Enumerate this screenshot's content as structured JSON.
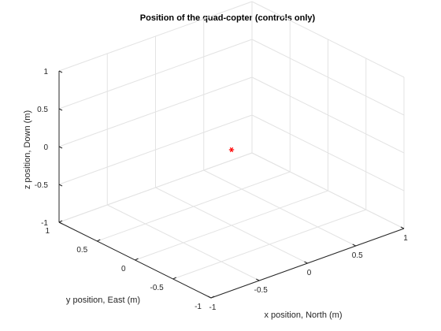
{
  "chart_data": {
    "type": "scatter",
    "title": "Position of the quad-copter (controls only)",
    "xlabel": "x position, North (m)",
    "ylabel": "y position, East (m)",
    "zlabel": "z position, Down (m)",
    "xlim": [
      -1,
      1
    ],
    "ylim": [
      -1,
      1
    ],
    "zlim": [
      -1,
      1
    ],
    "xticks": [
      "-1",
      "-0.5",
      "0",
      "0.5",
      "1"
    ],
    "yticks": [
      "-1",
      "-0.5",
      "0",
      "0.5",
      "1"
    ],
    "zticks": [
      "-1",
      "-0.5",
      "0",
      "0.5",
      "1"
    ],
    "grid": true,
    "view": "3d",
    "series": [
      {
        "marker": "asterisk",
        "color": "#ff0000",
        "points": [
          {
            "x": 0,
            "y": 0,
            "z": 0
          }
        ]
      }
    ]
  }
}
